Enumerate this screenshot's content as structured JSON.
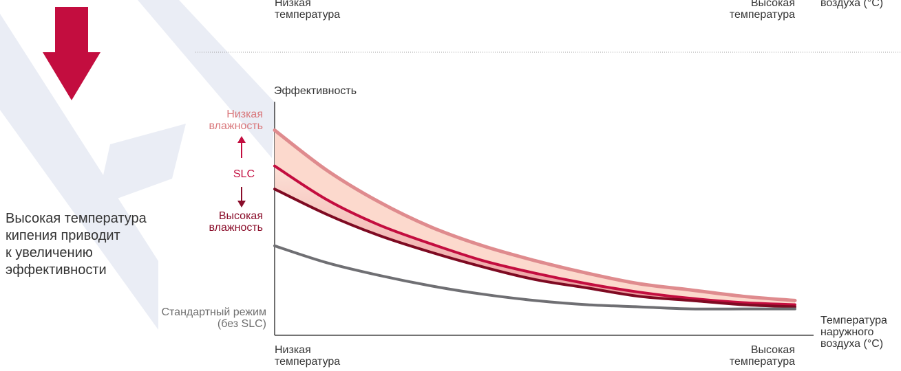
{
  "top_partial": {
    "x_low": "Низкая\nтемпература",
    "x_high": "Высокая\nтемпература",
    "x_axis": "воздуха (°C)"
  },
  "headline": "Высокая температура\nкипения приводит\nк увеличению\nэффективности",
  "chart_data": {
    "type": "line",
    "ylabel": "Эффективность",
    "xlabel": "Температура\nнаружного\nвоздуха (°C)",
    "x_tick_low": "Низкая\nтемпература",
    "x_tick_high": "Высокая\nтемпература",
    "x": [
      0,
      0.1,
      0.2,
      0.3,
      0.4,
      0.5,
      0.6,
      0.7,
      0.8,
      0.9,
      1.0
    ],
    "ylim": [
      0,
      1
    ],
    "series": [
      {
        "name": "Низкая\nвлажность",
        "color": "#df8b8e",
        "values": [
          0.91,
          0.72,
          0.57,
          0.45,
          0.36,
          0.29,
          0.23,
          0.18,
          0.15,
          0.12,
          0.1
        ]
      },
      {
        "name": "SLC",
        "color": "#c30d3f",
        "values": [
          0.74,
          0.58,
          0.46,
          0.37,
          0.29,
          0.23,
          0.18,
          0.14,
          0.11,
          0.09,
          0.08
        ]
      },
      {
        "name": "Высокая\nвлажность",
        "color": "#7e0a22",
        "values": [
          0.63,
          0.51,
          0.41,
          0.33,
          0.26,
          0.2,
          0.16,
          0.12,
          0.1,
          0.08,
          0.07
        ]
      },
      {
        "name": "Стандартный режим\n(без SLC)",
        "color": "#6f6f73",
        "values": [
          0.36,
          0.28,
          0.22,
          0.17,
          0.13,
          0.1,
          0.08,
          0.07,
          0.06,
          0.06,
          0.06
        ]
      }
    ],
    "slc_label": "SLC",
    "band_colors": {
      "light": "#fbd8cc",
      "dark": "#e98f91"
    }
  },
  "colors": {
    "accent": "#c30d3f",
    "watermark": "#e9ecf4"
  }
}
